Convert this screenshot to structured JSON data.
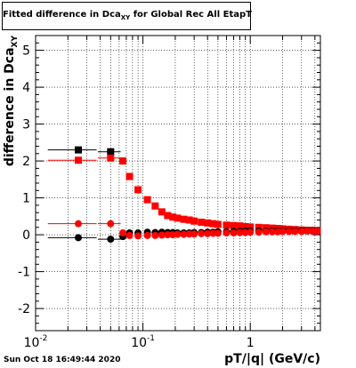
{
  "title": {
    "main": "Fitted difference in Dca",
    "sub": "XY",
    "rest": " for Global Rec All EtapT"
  },
  "footer": "Sun Oct 18 16:49:44 2020",
  "chart_data": {
    "type": "scatter",
    "xscale": "log",
    "xlim": [
      0.01,
      4.5
    ],
    "ylim": [
      -2.6,
      5.4
    ],
    "xlabel": "pT/|q| (GeV/c)",
    "ylabel": "difference in Dca",
    "ylabel_sub": "XY",
    "grid": true,
    "yticks": [
      "-2",
      "-1",
      "0",
      "1",
      "2",
      "3",
      "4",
      "5"
    ],
    "xtick_labels": [
      {
        "value": 0.01,
        "base": "10",
        "exp": "-2"
      },
      {
        "value": 0.1,
        "base": "10",
        "exp": "-1"
      },
      {
        "value": 1,
        "base": "1",
        "exp": ""
      }
    ],
    "series": [
      {
        "marker": "square",
        "color": "#000000",
        "x": [
          0.025,
          0.05
        ],
        "y": [
          2.3,
          2.25
        ],
        "xerr": [
          0.012,
          0.012
        ]
      },
      {
        "marker": "square",
        "color": "#ff0000",
        "x": [
          0.025,
          0.05,
          0.065,
          0.075,
          0.09,
          0.11,
          0.13,
          0.15,
          0.17,
          0.19,
          0.21,
          0.24,
          0.27,
          0.3,
          0.35,
          0.4,
          0.45,
          0.5,
          0.6,
          0.7,
          0.8,
          0.9,
          1.0,
          1.2,
          1.4,
          1.6,
          1.8,
          2.0,
          2.3,
          2.6,
          3.0,
          3.4,
          3.8,
          4.2
        ],
        "y": [
          2.02,
          2.08,
          2.0,
          1.58,
          1.22,
          0.95,
          0.78,
          0.62,
          0.52,
          0.48,
          0.45,
          0.42,
          0.4,
          0.37,
          0.34,
          0.32,
          0.3,
          0.28,
          0.26,
          0.25,
          0.24,
          0.22,
          0.21,
          0.2,
          0.19,
          0.18,
          0.17,
          0.16,
          0.15,
          0.14,
          0.13,
          0.12,
          0.12,
          0.11
        ],
        "xerr": [
          0.012,
          0.012,
          0,
          0,
          0,
          0,
          0,
          0,
          0,
          0,
          0,
          0,
          0,
          0,
          0,
          0,
          0,
          0,
          0,
          0,
          0,
          0,
          0,
          0,
          0,
          0,
          0,
          0,
          0,
          0,
          0,
          0,
          0,
          0
        ]
      },
      {
        "marker": "circle",
        "color": "#000000",
        "x": [
          0.025,
          0.05,
          0.065,
          0.075,
          0.09,
          0.11,
          0.13,
          0.15,
          0.17,
          0.19,
          0.21,
          0.24,
          0.27,
          0.3,
          0.35,
          0.4,
          0.45,
          0.5,
          0.6,
          0.7,
          0.8,
          0.9,
          1.0,
          1.2,
          1.4,
          1.6,
          1.8,
          2.0,
          2.3,
          2.6,
          3.0,
          3.4,
          3.8,
          4.2
        ],
        "y": [
          -0.08,
          -0.12,
          -0.05,
          0.05,
          0.05,
          0.07,
          0.06,
          0.07,
          0.06,
          0.06,
          0.05,
          0.05,
          0.05,
          0.06,
          0.06,
          0.07,
          0.07,
          0.08,
          0.08,
          0.09,
          0.09,
          0.1,
          0.1,
          0.1,
          0.1,
          0.1,
          0.1,
          0.11,
          0.11,
          0.11,
          0.11,
          0.11,
          0.11,
          0.11
        ],
        "xerr": [
          0.012,
          0.012,
          0,
          0,
          0,
          0,
          0,
          0,
          0,
          0,
          0,
          0,
          0,
          0,
          0,
          0,
          0,
          0,
          0,
          0,
          0,
          0,
          0,
          0,
          0,
          0,
          0,
          0,
          0,
          0,
          0,
          0,
          0,
          0
        ]
      },
      {
        "marker": "circle",
        "color": "#ff0000",
        "x": [
          0.025,
          0.05,
          0.065,
          0.075,
          0.09,
          0.11,
          0.13,
          0.15,
          0.17,
          0.19,
          0.21,
          0.24,
          0.27,
          0.3,
          0.35,
          0.4,
          0.45,
          0.5,
          0.6,
          0.7,
          0.8,
          0.9,
          1.0,
          1.2,
          1.4,
          1.6,
          1.8,
          2.0,
          2.3,
          2.6,
          3.0,
          3.4,
          3.8,
          4.2
        ],
        "y": [
          0.3,
          0.3,
          0.05,
          -0.02,
          -0.03,
          -0.02,
          -0.02,
          -0.01,
          0.0,
          0.0,
          0.01,
          0.01,
          0.02,
          0.02,
          0.03,
          0.03,
          0.04,
          0.04,
          0.05,
          0.05,
          0.06,
          0.06,
          0.07,
          0.07,
          0.08,
          0.08,
          0.08,
          0.09,
          0.09,
          0.09,
          0.09,
          0.1,
          0.1,
          0.1
        ],
        "xerr": [
          0.012,
          0.012,
          0,
          0,
          0,
          0,
          0,
          0,
          0,
          0,
          0,
          0,
          0,
          0,
          0,
          0,
          0,
          0,
          0,
          0,
          0,
          0,
          0,
          0,
          0,
          0,
          0,
          0,
          0,
          0,
          0,
          0,
          0,
          0
        ]
      }
    ]
  }
}
